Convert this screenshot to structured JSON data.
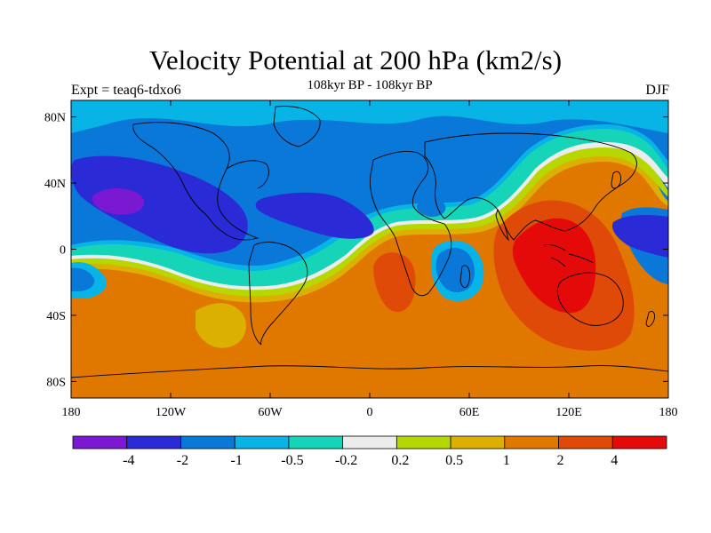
{
  "header": {
    "title": "Velocity Potential at 200 hPa (km2/s)",
    "subtitle": "108kyr BP - 108kyr BP",
    "left_label": "Expt = teaq6-tdxo6",
    "right_label": "DJF"
  },
  "chart_data": {
    "type": "heatmap",
    "projection": "cylindrical equidistant",
    "x_ticks": [
      {
        "value": -180,
        "label": "180"
      },
      {
        "value": -120,
        "label": "120W"
      },
      {
        "value": -60,
        "label": "60W"
      },
      {
        "value": 0,
        "label": "0"
      },
      {
        "value": 60,
        "label": "60E"
      },
      {
        "value": 120,
        "label": "120E"
      },
      {
        "value": 180,
        "label": "180"
      }
    ],
    "y_ticks": [
      {
        "value": 80,
        "label": "80N"
      },
      {
        "value": 40,
        "label": "40N"
      },
      {
        "value": 0,
        "label": "0"
      },
      {
        "value": -40,
        "label": "40S"
      },
      {
        "value": -80,
        "label": "80S"
      }
    ],
    "xlim": [
      -180,
      180
    ],
    "ylim": [
      -90,
      90
    ],
    "contour_levels": [
      "-4",
      "-2",
      "-1",
      "-0.5",
      "-0.2",
      "0.2",
      "0.5",
      "1",
      "2",
      "4"
    ],
    "colors": [
      "#7b19d2",
      "#2a2ad6",
      "#0a78d8",
      "#08b4e6",
      "#16d4b8",
      "#ececec",
      "#b6d800",
      "#dcb000",
      "#e07800",
      "#e04a08",
      "#e40a0a"
    ],
    "features": [
      {
        "name": "negative center N Pacific",
        "lon": -160,
        "lat": 30,
        "level": "< -4"
      },
      {
        "name": "negative center Atlantic",
        "lon": -30,
        "lat": 25,
        "level": "-2 to -1"
      },
      {
        "name": "negative center E Africa / Indian Ocean",
        "lon": 55,
        "lat": -15,
        "level": "-1"
      },
      {
        "name": "negative region E Pacific / NE Pacific",
        "lon": 160,
        "lat": 15,
        "level": "-2 to -1"
      },
      {
        "name": "positive center maritime continent / Australia",
        "lon": 125,
        "lat": -20,
        "level": "> 4"
      },
      {
        "name": "positive center S Atlantic / SW Africa",
        "lon": 20,
        "lat": -20,
        "level": "2 to 4"
      },
      {
        "name": "positive region Southern Ocean",
        "lon": 0,
        "lat": -60,
        "level": "1 to 2"
      }
    ]
  }
}
